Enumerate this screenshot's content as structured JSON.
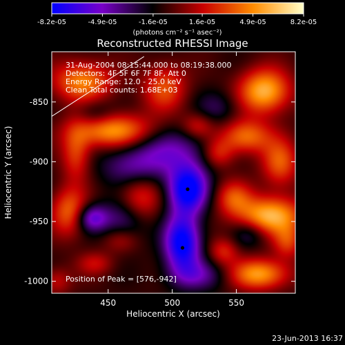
{
  "chart_data": {
    "type": "heatmap",
    "title": "Reconstructed RHESSI Image",
    "xlabel": "Heliocentric X (arcsec)",
    "ylabel": "Heliocentric Y (arcsec)",
    "xlim": [
      406,
      596
    ],
    "ylim": [
      -1010,
      -808
    ],
    "x_ticks": [
      450,
      500,
      550
    ],
    "y_ticks": [
      -850,
      -900,
      -950,
      -1000
    ],
    "colorbar": {
      "range": [
        -8.2e-05,
        8.2e-05
      ],
      "tick_labels": [
        "-8.2e-05",
        "-4.9e-05",
        "-1.6e-05",
        "1.6e-05",
        "4.9e-05",
        "8.2e-05"
      ],
      "tick_values": [
        -8.2e-05,
        -4.9e-05,
        -1.6e-05,
        1.6e-05,
        4.9e-05,
        8.2e-05
      ],
      "unit_label": "(photons cm⁻² s⁻¹ asec⁻²)"
    },
    "colormap": [
      "#0000ff",
      "#7800c8",
      "#000000",
      "#c80000",
      "#ff8c00",
      "#ffffc8"
    ],
    "info_lines": [
      "31-Aug-2004 08:15:44.000 to 08:19:38.000",
      "Detectors: 4F 5F 6F 7F 8F, Att 0",
      "Energy Range: 12.0 - 25.0 keV",
      "Clean    Total counts: 1.68E+03"
    ],
    "peak_label": "Position of Peak = [576,-942]",
    "markers": [
      {
        "x": 512,
        "y": -923
      },
      {
        "x": 508,
        "y": -972
      }
    ],
    "limb_line": [
      [
        406,
        -862
      ],
      [
        478,
        -812
      ]
    ],
    "blobs": [
      {
        "x": 430,
        "y": -833,
        "sx": 16,
        "sy": 12,
        "a": 0.8
      },
      {
        "x": 454,
        "y": -874,
        "sx": 22,
        "sy": 10,
        "a": 0.9
      },
      {
        "x": 425,
        "y": -893,
        "sx": 8,
        "sy": 16,
        "a": 0.55
      },
      {
        "x": 420,
        "y": -942,
        "sx": 10,
        "sy": 14,
        "a": 0.7
      },
      {
        "x": 474,
        "y": -930,
        "sx": 12,
        "sy": 14,
        "a": 0.55
      },
      {
        "x": 572,
        "y": -841,
        "sx": 14,
        "sy": 13,
        "a": 1.0
      },
      {
        "x": 557,
        "y": -879,
        "sx": 14,
        "sy": 10,
        "a": 0.75
      },
      {
        "x": 536,
        "y": -893,
        "sx": 9,
        "sy": 9,
        "a": 0.5
      },
      {
        "x": 584,
        "y": -901,
        "sx": 10,
        "sy": 14,
        "a": 0.65
      },
      {
        "x": 576,
        "y": -945,
        "sx": 18,
        "sy": 11,
        "a": 1.0
      },
      {
        "x": 548,
        "y": -930,
        "sx": 10,
        "sy": 10,
        "a": 0.55
      },
      {
        "x": 590,
        "y": -967,
        "sx": 8,
        "sy": 10,
        "a": 0.5
      },
      {
        "x": 568,
        "y": -994,
        "sx": 16,
        "sy": 9,
        "a": 0.9
      },
      {
        "x": 494,
        "y": -838,
        "sx": 12,
        "sy": 14,
        "a": 0.6
      },
      {
        "x": 460,
        "y": -965,
        "sx": 10,
        "sy": 8,
        "a": 0.4
      },
      {
        "x": 540,
        "y": -975,
        "sx": 8,
        "sy": 8,
        "a": 0.45
      },
      {
        "x": 440,
        "y": -985,
        "sx": 10,
        "sy": 7,
        "a": 0.35
      },
      {
        "x": 520,
        "y": -870,
        "sx": 9,
        "sy": 8,
        "a": 0.45
      },
      {
        "x": 410,
        "y": -1000,
        "sx": 8,
        "sy": 8,
        "a": 0.35
      },
      {
        "x": 512,
        "y": -923,
        "sx": 11,
        "sy": 14,
        "a": -1.15
      },
      {
        "x": 508,
        "y": -968,
        "sx": 10,
        "sy": 17,
        "a": -1.15
      },
      {
        "x": 437,
        "y": -947,
        "sx": 9,
        "sy": 8,
        "a": -0.7
      },
      {
        "x": 500,
        "y": -890,
        "sx": 24,
        "sy": 14,
        "a": -0.5
      },
      {
        "x": 470,
        "y": -905,
        "sx": 18,
        "sy": 12,
        "a": -0.45
      },
      {
        "x": 462,
        "y": -950,
        "sx": 12,
        "sy": 14,
        "a": -0.5
      },
      {
        "x": 520,
        "y": -995,
        "sx": 16,
        "sy": 9,
        "a": -0.45
      },
      {
        "x": 535,
        "y": -855,
        "sx": 12,
        "sy": 10,
        "a": -0.3
      },
      {
        "x": 440,
        "y": -860,
        "sx": 10,
        "sy": 8,
        "a": -0.3
      },
      {
        "x": 560,
        "y": -960,
        "sx": 9,
        "sy": 8,
        "a": -0.35
      }
    ]
  },
  "footer": {
    "timestamp": "23-Jun-2013 16:37"
  }
}
